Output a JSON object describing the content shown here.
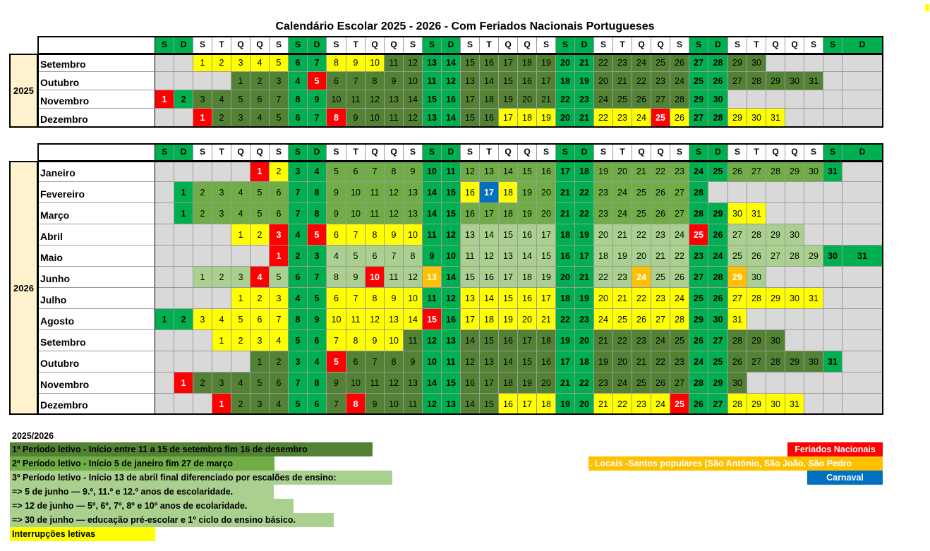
{
  "title": "Calendário Escolar 2025 - 2026  - Com Feriados Nacionais Portugueses",
  "colors": {
    "weekend": "#00b050",
    "period1": "#548235",
    "period2": "#70ad47",
    "period3": "#a9d08e",
    "interruption": "#ffff00",
    "holiday": "#ff0000",
    "local_holiday": "#ffc000",
    "carnival": "#0070c0",
    "empty": "#d9d9d9",
    "year_bg": "#fff2cc"
  },
  "weekday_header": [
    "S",
    "D",
    "S",
    "T",
    "Q",
    "Q",
    "S",
    "S",
    "D",
    "S",
    "T",
    "Q",
    "Q",
    "S",
    "S",
    "D",
    "S",
    "T",
    "Q",
    "Q",
    "S",
    "S",
    "D",
    "S",
    "T",
    "Q",
    "Q",
    "S",
    "S",
    "D",
    "S",
    "T",
    "Q",
    "Q",
    "S",
    "S",
    "D"
  ],
  "sections": [
    {
      "year": "2025",
      "months": [
        {
          "name": "Setembro",
          "start": 2,
          "days": 30,
          "ranges": [
            [
              1,
              10,
              "interruption"
            ],
            [
              11,
              30,
              "period1"
            ]
          ],
          "specials": {}
        },
        {
          "name": "Outubro",
          "start": 4,
          "days": 31,
          "ranges": [
            [
              1,
              31,
              "period1"
            ]
          ],
          "specials": {
            "5": "holiday"
          }
        },
        {
          "name": "Novembro",
          "start": 0,
          "days": 30,
          "ranges": [
            [
              1,
              30,
              "period1"
            ]
          ],
          "specials": {
            "1": "holiday"
          }
        },
        {
          "name": "Dezembro",
          "start": 2,
          "days": 31,
          "ranges": [
            [
              1,
              16,
              "period1"
            ],
            [
              17,
              31,
              "interruption"
            ]
          ],
          "specials": {
            "1": "holiday",
            "8": "holiday",
            "25": "holiday"
          }
        }
      ]
    },
    {
      "year": "2026",
      "months": [
        {
          "name": "Janeiro",
          "start": 5,
          "days": 31,
          "ranges": [
            [
              1,
              4,
              "interruption"
            ],
            [
              5,
              31,
              "period2"
            ]
          ],
          "specials": {
            "1": "holiday"
          }
        },
        {
          "name": "Fevereiro",
          "start": 1,
          "days": 28,
          "ranges": [
            [
              1,
              15,
              "period2"
            ],
            [
              16,
              18,
              "interruption"
            ],
            [
              19,
              28,
              "period2"
            ]
          ],
          "specials": {
            "17": "carnival"
          }
        },
        {
          "name": "Março",
          "start": 1,
          "days": 31,
          "ranges": [
            [
              1,
              27,
              "period2"
            ],
            [
              28,
              31,
              "interruption"
            ]
          ],
          "specials": {}
        },
        {
          "name": "Abril",
          "start": 4,
          "days": 30,
          "ranges": [
            [
              1,
              12,
              "interruption"
            ],
            [
              13,
              30,
              "period3"
            ]
          ],
          "specials": {
            "3": "holiday",
            "5": "holiday",
            "25": "holiday"
          }
        },
        {
          "name": "Maio",
          "start": 6,
          "days": 31,
          "ranges": [
            [
              1,
              31,
              "period3"
            ]
          ],
          "specials": {
            "1": "holiday"
          }
        },
        {
          "name": "Junho",
          "start": 2,
          "days": 30,
          "ranges": [
            [
              1,
              30,
              "period3"
            ]
          ],
          "specials": {
            "4": "holiday",
            "10": "holiday",
            "13": "local_holiday",
            "24": "local_holiday",
            "29": "local_holiday"
          }
        },
        {
          "name": "Julho",
          "start": 4,
          "days": 31,
          "ranges": [
            [
              1,
              31,
              "interruption"
            ]
          ],
          "specials": {}
        },
        {
          "name": "Agosto",
          "start": 0,
          "days": 31,
          "ranges": [
            [
              1,
              31,
              "interruption"
            ]
          ],
          "specials": {
            "15": "holiday"
          }
        },
        {
          "name": "Setembro",
          "start": 3,
          "days": 30,
          "ranges": [
            [
              1,
              10,
              "interruption"
            ],
            [
              11,
              30,
              "period1"
            ]
          ],
          "specials": {}
        },
        {
          "name": "Outubro",
          "start": 5,
          "days": 31,
          "ranges": [
            [
              1,
              31,
              "period1"
            ]
          ],
          "specials": {
            "5": "holiday"
          }
        },
        {
          "name": "Novembro",
          "start": 1,
          "days": 30,
          "ranges": [
            [
              1,
              30,
              "period1"
            ]
          ],
          "specials": {
            "1": "holiday"
          }
        },
        {
          "name": "Dezembro",
          "start": 3,
          "days": 31,
          "ranges": [
            [
              1,
              15,
              "period1"
            ],
            [
              16,
              31,
              "interruption"
            ]
          ],
          "specials": {
            "1": "holiday",
            "8": "holiday",
            "25": "holiday"
          }
        }
      ]
    }
  ],
  "legend": {
    "heading": "2025/2026",
    "period1": "1º Período letivo -  Início entre 11 a 15 de setembro fim 16 de desembro",
    "period2": "2º Período letivo - Início 5 de janeiro fim 27 de março",
    "period3": "3º Período letivo - Início 13 de abril final diferenciado por escalões de ensino:",
    "period3_line1": "=>  5 de junho — 9.º, 11.º e 12.º anos de escolaridade.",
    "period3_line2": "=> 12 de junho — 5º, 6º, 7º, 8º e 10º anos de ecolaridade.",
    "period3_line3": "=> 30 de junho — educação pré-escolar e 1º ciclo do ensino básico.",
    "interruptions": "Interrupções letivas",
    "national_holidays": "Feriados Nacionais",
    "local_holidays": ". Locais -Santos populares (São António, São João, São Pedro",
    "carnival": "Carnaval"
  }
}
